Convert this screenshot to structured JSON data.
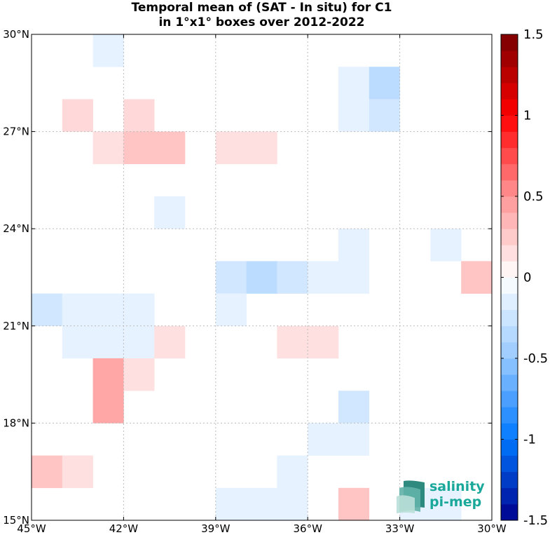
{
  "title_line1": "Temporal mean of (SAT - In situ) for C1",
  "title_line2": "in 1°x1° boxes over 2012-2022",
  "logo": {
    "line1": "salinity",
    "line2": "pi-mep",
    "color": "#1aa89a"
  },
  "chart_data": {
    "type": "heatmap",
    "title": "Temporal mean of (SAT - In situ) for C1 in 1°x1° boxes over 2012-2022",
    "xlim": [
      -45,
      -30
    ],
    "ylim": [
      15,
      30
    ],
    "xticks": [
      -45,
      -42,
      -39,
      -36,
      -33,
      -30
    ],
    "xtick_labels": [
      "45°W",
      "42°W",
      "39°W",
      "36°W",
      "33°W",
      "30°W"
    ],
    "yticks": [
      15,
      18,
      21,
      24,
      27,
      30
    ],
    "ytick_labels": [
      "15°N",
      "18°N",
      "21°N",
      "24°N",
      "27°N",
      "30°N"
    ],
    "grid": true,
    "colorbar": {
      "range": [
        -1.5,
        1.5
      ],
      "ticks": [
        -1.5,
        -1,
        -0.5,
        0,
        0.5,
        1,
        1.5
      ],
      "tick_labels": [
        "-1.5",
        "-1",
        "-0.5",
        "0",
        "0.5",
        "1",
        "1.5"
      ],
      "neg_color": "#00008b",
      "pos_color": "#7a0000"
    },
    "cells": [
      {
        "lon": -43,
        "lat": 29,
        "value": -0.12
      },
      {
        "lon": -35,
        "lat": 28,
        "value": -0.12
      },
      {
        "lon": -34,
        "lat": 28,
        "value": -0.32
      },
      {
        "lon": -44,
        "lat": 27,
        "value": 0.18
      },
      {
        "lon": -42,
        "lat": 27,
        "value": 0.18
      },
      {
        "lon": -35,
        "lat": 27,
        "value": -0.12
      },
      {
        "lon": -34,
        "lat": 27,
        "value": -0.22
      },
      {
        "lon": -43,
        "lat": 26,
        "value": 0.15
      },
      {
        "lon": -42,
        "lat": 26,
        "value": 0.28
      },
      {
        "lon": -41,
        "lat": 26,
        "value": 0.28
      },
      {
        "lon": -39,
        "lat": 26,
        "value": 0.15
      },
      {
        "lon": -38,
        "lat": 26,
        "value": 0.15
      },
      {
        "lon": -41,
        "lat": 24,
        "value": -0.12
      },
      {
        "lon": -35,
        "lat": 23,
        "value": -0.12
      },
      {
        "lon": -32,
        "lat": 23,
        "value": -0.12
      },
      {
        "lon": -39,
        "lat": 22,
        "value": -0.22
      },
      {
        "lon": -38,
        "lat": 22,
        "value": -0.32
      },
      {
        "lon": -37,
        "lat": 22,
        "value": -0.22
      },
      {
        "lon": -36,
        "lat": 22,
        "value": -0.12
      },
      {
        "lon": -35,
        "lat": 22,
        "value": -0.12
      },
      {
        "lon": -31,
        "lat": 22,
        "value": 0.28
      },
      {
        "lon": -45,
        "lat": 21,
        "value": -0.22
      },
      {
        "lon": -44,
        "lat": 21,
        "value": -0.12
      },
      {
        "lon": -43,
        "lat": 21,
        "value": -0.12
      },
      {
        "lon": -42,
        "lat": 21,
        "value": -0.12
      },
      {
        "lon": -39,
        "lat": 21,
        "value": -0.12
      },
      {
        "lon": -44,
        "lat": 20,
        "value": -0.12
      },
      {
        "lon": -43,
        "lat": 20,
        "value": -0.12
      },
      {
        "lon": -42,
        "lat": 20,
        "value": -0.12
      },
      {
        "lon": -41,
        "lat": 20,
        "value": 0.15
      },
      {
        "lon": -37,
        "lat": 20,
        "value": 0.15
      },
      {
        "lon": -36,
        "lat": 20,
        "value": 0.15
      },
      {
        "lon": -43,
        "lat": 19,
        "value": 0.42
      },
      {
        "lon": -42,
        "lat": 19,
        "value": 0.15
      },
      {
        "lon": -43,
        "lat": 18,
        "value": 0.42
      },
      {
        "lon": -35,
        "lat": 18,
        "value": -0.22
      },
      {
        "lon": -36,
        "lat": 17,
        "value": -0.12
      },
      {
        "lon": -35,
        "lat": 17,
        "value": -0.12
      },
      {
        "lon": -45,
        "lat": 16,
        "value": 0.28
      },
      {
        "lon": -44,
        "lat": 16,
        "value": 0.15
      },
      {
        "lon": -37,
        "lat": 16,
        "value": -0.12
      },
      {
        "lon": -39,
        "lat": 15,
        "value": -0.12
      },
      {
        "lon": -38,
        "lat": 15,
        "value": -0.12
      },
      {
        "lon": -37,
        "lat": 15,
        "value": -0.12
      },
      {
        "lon": -35,
        "lat": 15,
        "value": 0.28
      },
      {
        "lon": -33,
        "lat": 15,
        "value": -0.12
      },
      {
        "lon": -32,
        "lat": 15,
        "value": -0.12
      }
    ]
  }
}
